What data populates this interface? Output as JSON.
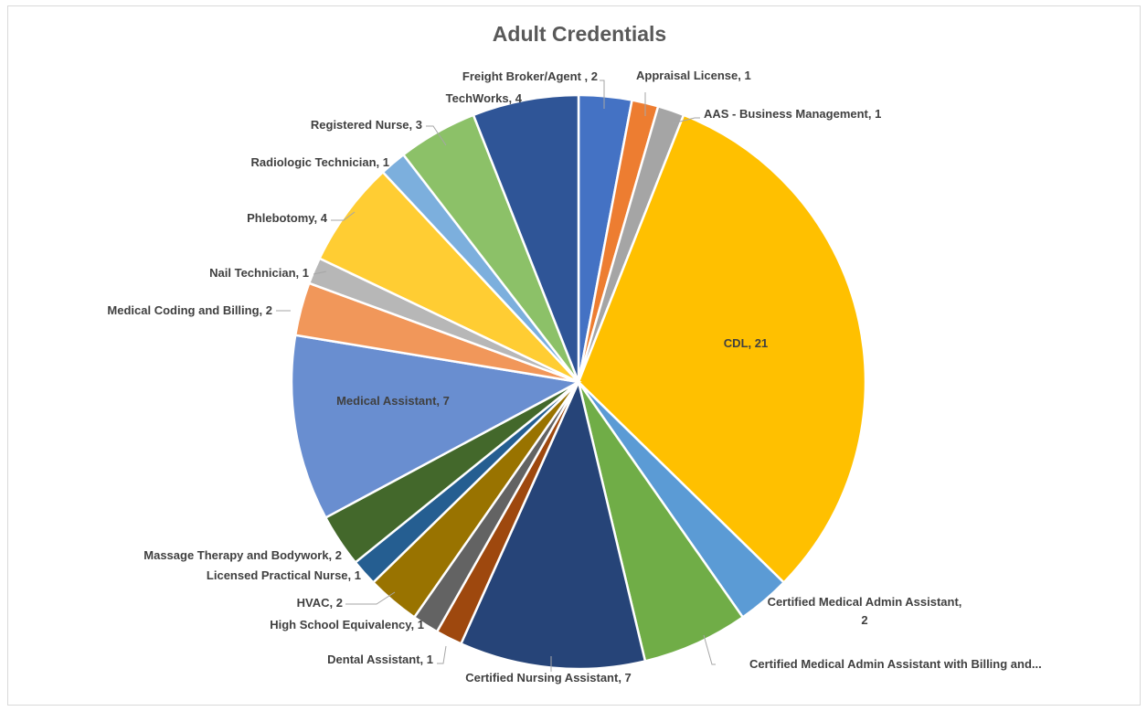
{
  "chart_data": {
    "type": "pie",
    "title": "Adult Credentials",
    "legend": "none",
    "slices": [
      {
        "label": "Freight Broker/Agent",
        "value": 2,
        "color": "#4472C4",
        "display": "Freight Broker/Agent , 2"
      },
      {
        "label": "Appraisal License",
        "value": 1,
        "color": "#ED7D31",
        "display": "Appraisal License, 1"
      },
      {
        "label": "AAS - Business Management",
        "value": 1,
        "color": "#A5A5A5",
        "display": "AAS - Business Management, 1"
      },
      {
        "label": "CDL",
        "value": 21,
        "color": "#FFC000",
        "display": "CDL, 21"
      },
      {
        "label": "Certified Medical Admin Assistant",
        "value": 2,
        "color": "#5B9BD5",
        "display": "Certified Medical Admin Assistant,",
        "display2": "2"
      },
      {
        "label": "Certified Medical Admin Assistant with Billing and...",
        "value": 4,
        "color": "#70AD47",
        "display": "Certified Medical Admin Assistant with Billing and..."
      },
      {
        "label": "Certified Nursing Assistant",
        "value": 7,
        "color": "#264478",
        "display": "Certified Nursing Assistant, 7"
      },
      {
        "label": "Dental Assistant",
        "value": 1,
        "color": "#9E480E",
        "display": "Dental Assistant, 1"
      },
      {
        "label": "High School Equivalency",
        "value": 1,
        "color": "#636363",
        "display": "High School Equivalency, 1"
      },
      {
        "label": "HVAC",
        "value": 2,
        "color": "#997300",
        "display": "HVAC, 2"
      },
      {
        "label": "Licensed Practical Nurse",
        "value": 1,
        "color": "#255E91",
        "display": "Licensed Practical Nurse, 1"
      },
      {
        "label": "Massage Therapy and Bodywork",
        "value": 2,
        "color": "#43682B",
        "display": "Massage Therapy and Bodywork, 2"
      },
      {
        "label": "Medical Assistant",
        "value": 7,
        "color": "#698ED0",
        "display": "Medical Assistant, 7"
      },
      {
        "label": "Medical Coding and Billing",
        "value": 2,
        "color": "#F1975A",
        "display": "Medical Coding and Billing, 2"
      },
      {
        "label": "Nail Technician",
        "value": 1,
        "color": "#B7B7B7",
        "display": "Nail Technician, 1"
      },
      {
        "label": "Phlebotomy",
        "value": 4,
        "color": "#FFCD33",
        "display": "Phlebotomy, 4"
      },
      {
        "label": "Radiologic Technician",
        "value": 1,
        "color": "#7CAFDD",
        "display": "Radiologic Technician, 1"
      },
      {
        "label": "Registered Nurse",
        "value": 3,
        "color": "#8CC168",
        "display": "Registered Nurse, 3"
      },
      {
        "label": "TechWorks",
        "value": 4,
        "color": "#2F5597",
        "display": "TechWorks, 4"
      }
    ]
  }
}
